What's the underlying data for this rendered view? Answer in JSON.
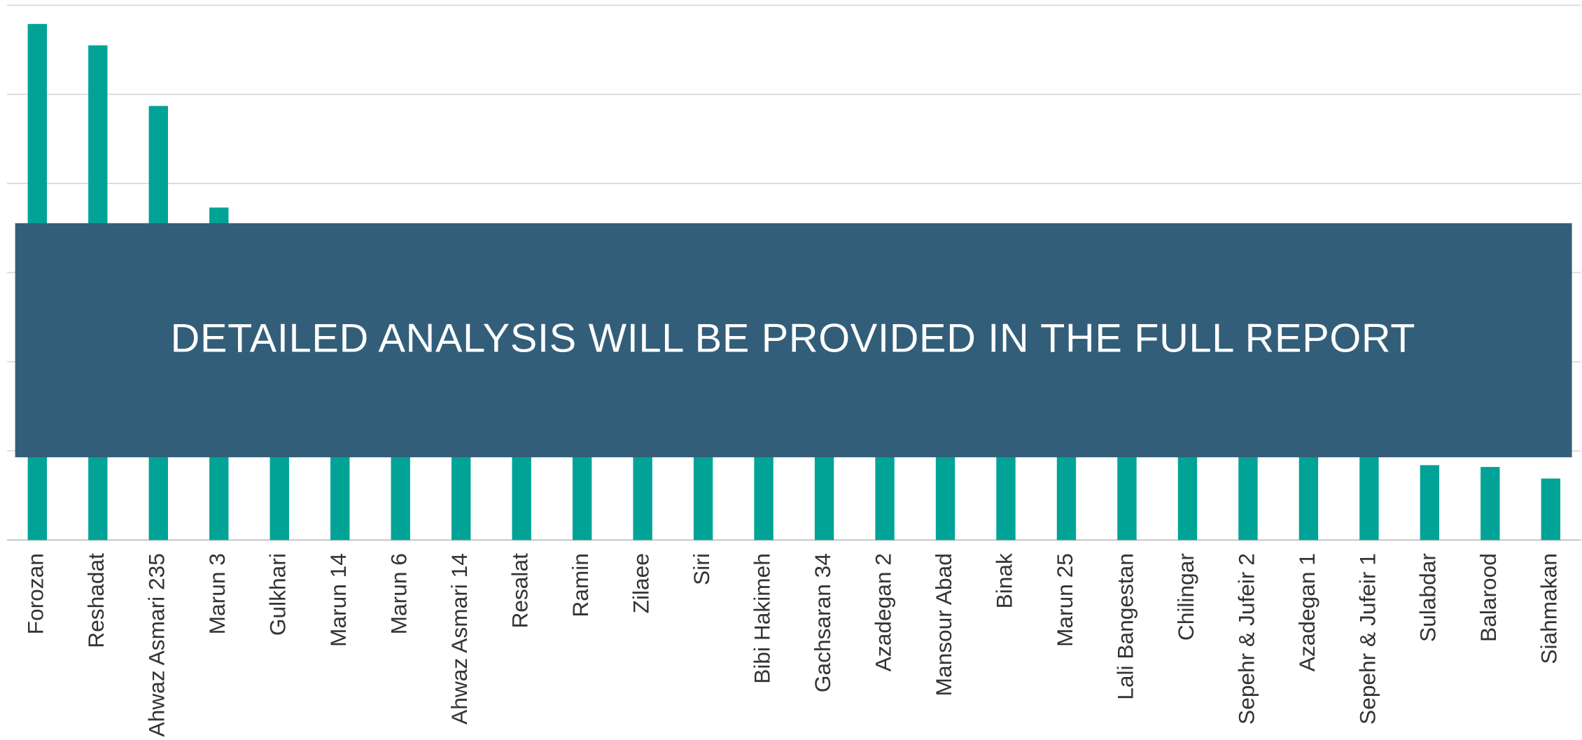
{
  "chart_data": {
    "type": "bar",
    "annotation": "DETAILED ANALYSIS WILL BE PROVIDED IN THE FULL REPORT",
    "categories": [
      "Forozan",
      "Reshadat",
      "Ahwaz Asmari 235",
      "Marun 3",
      "Gulkhari",
      "Marun 14",
      "Marun 6",
      "Ahwaz Asmari 14",
      "Resalat",
      "Ramin",
      "Zilaee",
      "Siri",
      "Bibi Hakimeh",
      "Gachsaran 34",
      "Azadegan 2",
      "Mansour Abad",
      "Binak",
      "Marun 25",
      "Lali Bangestan",
      "Chilingar",
      "Sepehr & Jufeir 2",
      "Azadegan 1",
      "Sepehr & Jufeir 1",
      "Sulabdar",
      "Balarood",
      "Siahmakan"
    ],
    "values": [
      5.79,
      5.55,
      4.87,
      3.73,
      3.4,
      3.1,
      2.85,
      2.6,
      2.4,
      2.2,
      2.05,
      1.9,
      1.8,
      1.7,
      1.6,
      1.5,
      1.42,
      1.35,
      1.28,
      1.2,
      1.13,
      1.07,
      1.0,
      0.84,
      0.82,
      0.69
    ],
    "color": "#00a396",
    "ylim": [
      0,
      6
    ],
    "yticks": [
      0,
      1,
      2,
      3,
      4,
      5,
      6
    ],
    "grid": true
  }
}
